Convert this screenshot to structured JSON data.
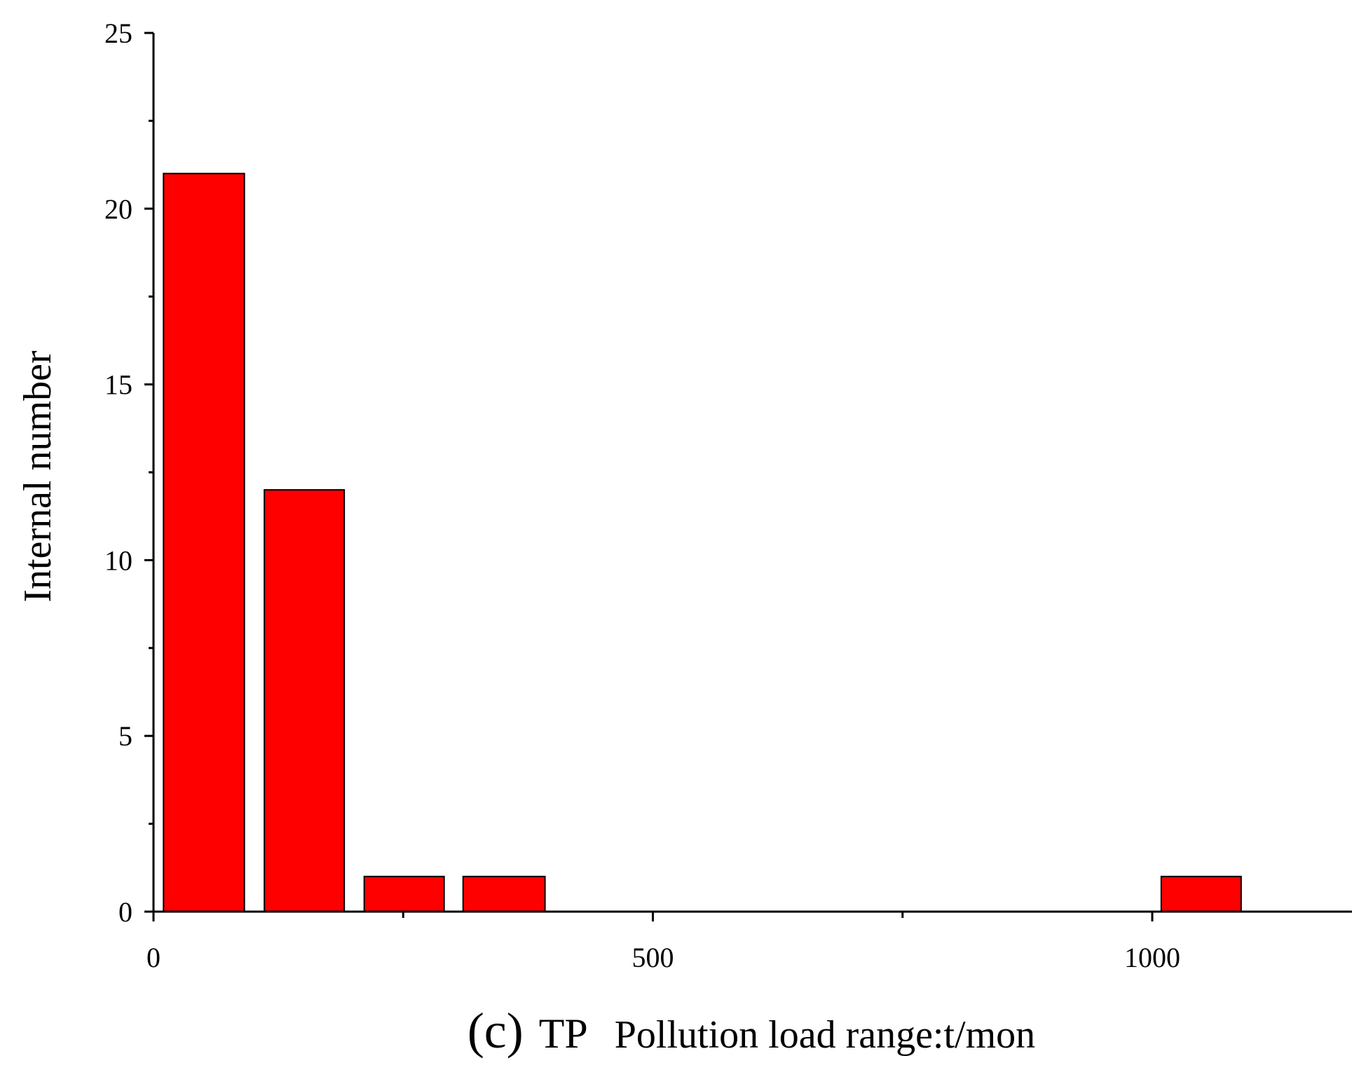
{
  "chart_data": {
    "type": "bar",
    "bars": [
      {
        "x_start": 10,
        "x_end": 91,
        "value": 21
      },
      {
        "x_start": 111,
        "x_end": 191,
        "value": 12
      },
      {
        "x_start": 211,
        "x_end": 291,
        "value": 1
      },
      {
        "x_start": 310,
        "x_end": 392,
        "value": 1
      },
      {
        "x_start": 1009,
        "x_end": 1089,
        "value": 1
      }
    ],
    "xlim": [
      0,
      1200
    ],
    "ylim": [
      0,
      25
    ],
    "x_major_ticks": [
      0,
      500,
      1000
    ],
    "x_minor_ticks": [
      250,
      750
    ],
    "x_tick_labels": [
      "0",
      "500",
      "1000"
    ],
    "y_major_ticks": [
      0,
      5,
      10,
      15,
      20,
      25
    ],
    "y_minor_ticks": [
      2.5,
      7.5,
      12.5,
      17.5,
      22.5
    ],
    "y_tick_labels": [
      "0",
      "5",
      "10",
      "15",
      "20",
      "25"
    ],
    "ylabel": "Internal number",
    "xlabel_panel": "(c)",
    "xlabel_prefix": "TP",
    "xlabel": "Pollution load range:t/mon",
    "bar_color": "#ff0000",
    "bar_edge_color": "#000000",
    "grid": false,
    "legend": "none"
  }
}
